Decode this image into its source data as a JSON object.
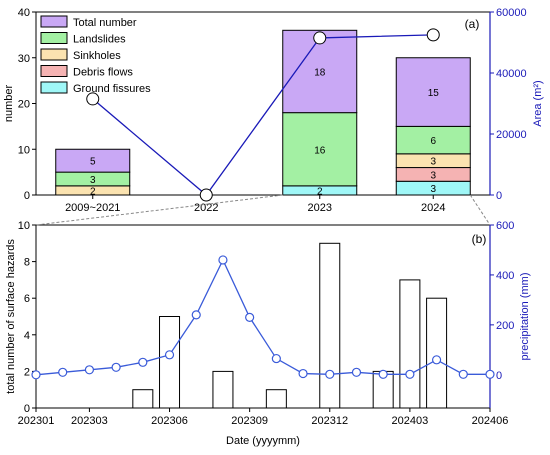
{
  "chart_data": [
    {
      "panel": "(a)",
      "type": "bar",
      "stacked": true,
      "categories": [
        "2009~2021",
        "2022",
        "2023",
        "2024"
      ],
      "ylabel": "number",
      "y2label": "Area (m²)",
      "ylim": [
        0,
        40
      ],
      "y2lim": [
        0,
        60000
      ],
      "yticks": [
        0,
        10,
        20,
        30,
        40
      ],
      "y2ticks": [
        0,
        20000,
        40000,
        60000
      ],
      "y2ticks_text": [
        "0",
        "20000",
        "40000",
        "60000"
      ],
      "legend_position": "top-left",
      "series": [
        {
          "name": "Ground fissures",
          "color": "#9ff7f7",
          "values": [
            0,
            0,
            2,
            3
          ],
          "labels": [
            "",
            "",
            "2",
            "3"
          ]
        },
        {
          "name": "Debris flows",
          "color": "#f5b3b3",
          "values": [
            0,
            0,
            0,
            3
          ],
          "labels": [
            "",
            "",
            "",
            "3"
          ]
        },
        {
          "name": "Sinkholes",
          "color": "#fbe3b0",
          "values": [
            2,
            0,
            0,
            3
          ],
          "labels": [
            "2",
            "",
            "",
            "3"
          ]
        },
        {
          "name": "Landslides",
          "color": "#a3f0a3",
          "values": [
            3,
            0,
            16,
            6
          ],
          "labels": [
            "3",
            "",
            "16",
            "6"
          ]
        },
        {
          "name": "Total number",
          "color": "#c9a8f5",
          "values": [
            5,
            0,
            18,
            15
          ],
          "labels": [
            "5",
            "",
            "18",
            "15"
          ]
        }
      ],
      "area_line": {
        "values": [
          31500,
          0,
          51500,
          52500
        ],
        "color": "#1a1ab8"
      }
    },
    {
      "panel": "(b)",
      "type": "bar+line",
      "xlabel": "Date (yyyymm)",
      "ylabel": "total number of surface hazards",
      "y2label": "precipitation (mm)",
      "ylim": [
        0,
        10
      ],
      "y2lim": [
        -133,
        600
      ],
      "yticks": [
        0,
        2,
        4,
        6,
        8,
        10
      ],
      "y2ticks": [
        0,
        200,
        400,
        600
      ],
      "xtick_labels": [
        "202301",
        "202303",
        "202306",
        "202309",
        "202312",
        "202403",
        "202406"
      ],
      "xtick_index": [
        0,
        2,
        5,
        8,
        11,
        14,
        17
      ],
      "months": [
        "202301",
        "202302",
        "202303",
        "202304",
        "202305",
        "202306",
        "202307",
        "202308",
        "202309",
        "202310",
        "202311",
        "202312",
        "202401",
        "202402",
        "202403",
        "202404",
        "202405",
        "202406"
      ],
      "bars": [
        0,
        0,
        0,
        0,
        1,
        5,
        0,
        2,
        0,
        1,
        0,
        9,
        0,
        2,
        7,
        6,
        0,
        0
      ],
      "precipitation": [
        0,
        10,
        20,
        30,
        50,
        80,
        240,
        460,
        230,
        65,
        5,
        2,
        10,
        2,
        2,
        60,
        2,
        2
      ],
      "line_color": "#3a5bd9"
    }
  ]
}
